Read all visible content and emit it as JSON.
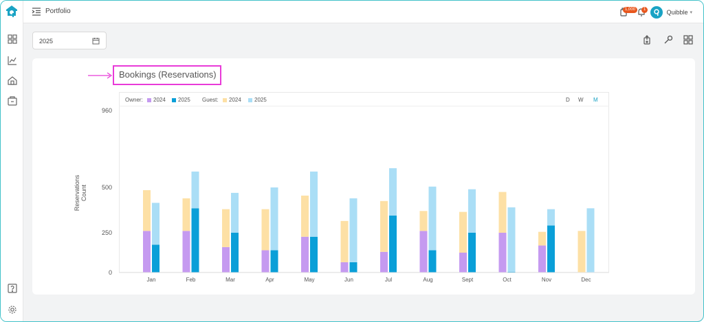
{
  "header": {
    "title": "Portfolio",
    "username": "Quibble",
    "notif_badge_1": "1,000",
    "notif_badge_2": "1"
  },
  "filter": {
    "year": "2025"
  },
  "chart_title": "Bookings (Reservations)",
  "legend": {
    "owner_label": "Owner:",
    "guest_label": "Guest:",
    "items": [
      "2024",
      "2025",
      "2024",
      "2025"
    ]
  },
  "periods": [
    "D",
    "W",
    "M"
  ],
  "active_period": "M",
  "colors": {
    "owner_2024": "#c59af0",
    "owner_2025": "#0a9fd8",
    "guest_2024": "#fde0a5",
    "guest_2025": "#aadef6",
    "accent": "#1aa3c4",
    "highlight": "#e83ad8"
  },
  "chart_data": {
    "type": "bar",
    "stacked": true,
    "ylabel": "Reservations Count",
    "yticks": [
      0,
      250,
      500,
      960
    ],
    "categories": [
      "Jan",
      "Feb",
      "Mar",
      "Apr",
      "May",
      "Jun",
      "Jul",
      "Aug",
      "Sept",
      "Oct",
      "Nov",
      "Dec"
    ],
    "series": [
      {
        "name": "Owner 2024",
        "stack": "2024",
        "values": [
          260,
          260,
          160,
          140,
          225,
          65,
          130,
          260,
          125,
          250,
          170,
          0
        ]
      },
      {
        "name": "Guest 2024",
        "stack": "2024",
        "values": [
          225,
          180,
          220,
          240,
          230,
          250,
          295,
          110,
          240,
          225,
          85,
          260
        ]
      },
      {
        "name": "Owner 2025",
        "stack": "2025",
        "values": [
          175,
          385,
          250,
          140,
          225,
          65,
          345,
          140,
          250,
          5,
          290,
          0
        ]
      },
      {
        "name": "Guest 2025",
        "stack": "2025",
        "values": [
          240,
          210,
          220,
          360,
          370,
          375,
          270,
          365,
          240,
          385,
          90,
          385
        ]
      }
    ]
  }
}
